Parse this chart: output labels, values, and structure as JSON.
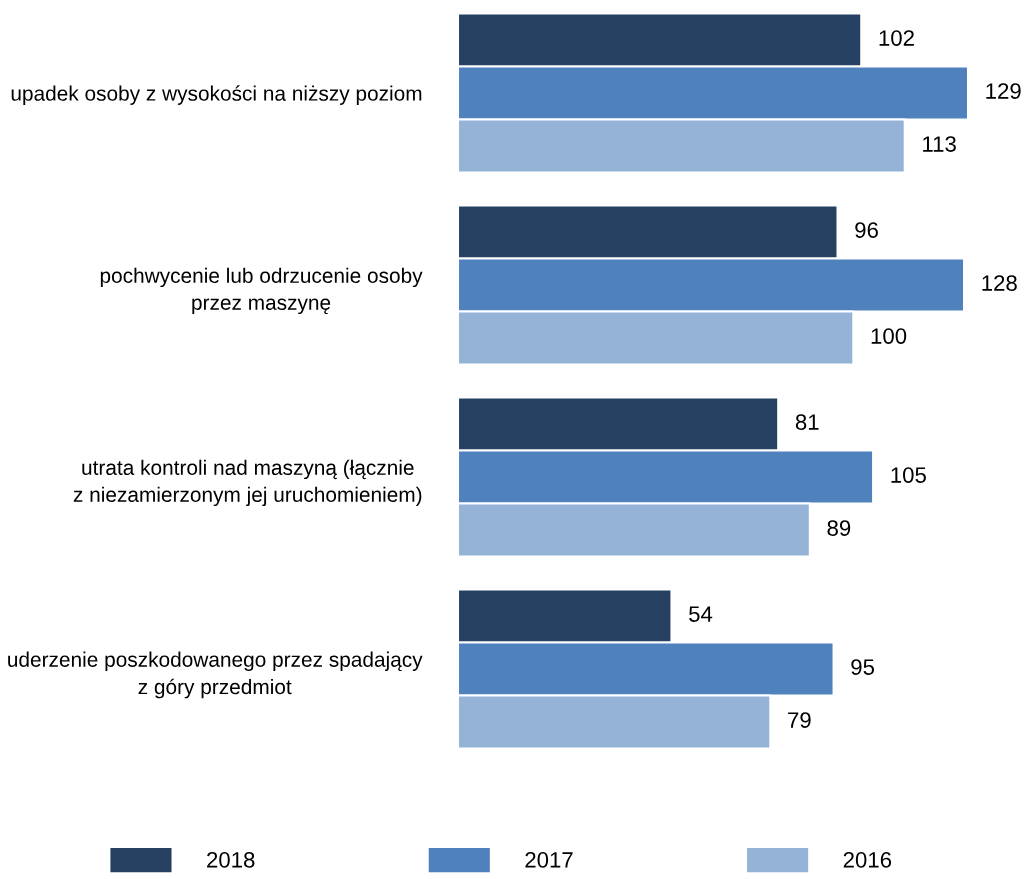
{
  "chart_data": {
    "type": "bar",
    "orientation": "horizontal",
    "categories": [
      "upadek osoby z wysokości na niższy poziom",
      "pochwycenie lub odrzucenie osoby\nprzez maszynę",
      "utrata kontroli nad maszyną (łącznie\nz niezamierzonym jej uruchomieniem)",
      "uderzenie poszkodowanego przez spadający\nz góry przedmiot"
    ],
    "series": [
      {
        "name": "2018",
        "color": "#264061",
        "values": [
          102,
          96,
          81,
          54
        ]
      },
      {
        "name": "2017",
        "color": "#4f81bd",
        "values": [
          129,
          128,
          105,
          95
        ]
      },
      {
        "name": "2016",
        "color": "#95b3d7",
        "values": [
          113,
          100,
          89,
          79
        ]
      }
    ],
    "data_labels": true,
    "legend": "bottom",
    "tick_labels": "y"
  }
}
